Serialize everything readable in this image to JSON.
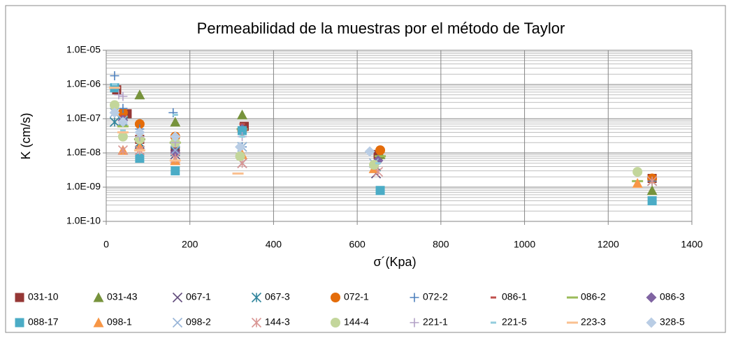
{
  "chart_data": {
    "type": "scatter",
    "title": "Permeabilidad de la muestras por el método de Taylor",
    "x_label": "σ´(Kpa)",
    "y_label": "K (cm/s)",
    "xlim": [
      0,
      1400
    ],
    "xticks": [
      0,
      200,
      400,
      600,
      800,
      1000,
      1200,
      1400
    ],
    "ylim": [
      1e-10,
      1e-05
    ],
    "log_y": true,
    "grid": true,
    "minor_grid": true,
    "legend": "bottom",
    "yticks": [
      {
        "value": 1e-10,
        "label": "1.0E-10"
      },
      {
        "value": 1e-09,
        "label": "1.0E-09"
      },
      {
        "value": 1e-08,
        "label": "1.0E-08"
      },
      {
        "value": 1e-07,
        "label": "1.0E-07"
      },
      {
        "value": 1e-06,
        "label": "1.0E-06"
      },
      {
        "value": 1e-05,
        "label": "1.0E-05"
      }
    ],
    "series": [
      {
        "name": "031-10",
        "color": "#953735",
        "marker": "square",
        "x": [
          25,
          50,
          80,
          165,
          330,
          650,
          1305
        ],
        "values": [
          7e-07,
          1.4e-07,
          2.5e-08,
          1.2e-08,
          6e-08,
          9e-09,
          1.8e-09
        ]
      },
      {
        "name": "031-43",
        "color": "#77933c",
        "marker": "triangle",
        "x": [
          40,
          80,
          165,
          325,
          655,
          1305
        ],
        "values": [
          1.5e-07,
          5e-07,
          8e-08,
          1.3e-07,
          9e-09,
          8e-10
        ]
      },
      {
        "name": "067-1",
        "color": "#604a7b",
        "marker": "x",
        "x": [
          40,
          80,
          165,
          325,
          645,
          1305
        ],
        "values": [
          1.2e-07,
          1.8e-08,
          9e-09,
          5e-09,
          2.5e-09,
          1.5e-09
        ]
      },
      {
        "name": "067-3",
        "color": "#31859c",
        "marker": "star",
        "x": [
          20,
          40,
          80,
          165,
          325,
          645,
          1305
        ],
        "values": [
          8e-08,
          8e-08,
          2e-08,
          1.1e-08,
          1.5e-08,
          4e-09,
          1.5e-09
        ]
      },
      {
        "name": "072-1",
        "color": "#e46c0a",
        "marker": "circle",
        "x": [
          40,
          80,
          165,
          325,
          655,
          1305
        ],
        "values": [
          1.5e-07,
          7e-08,
          3e-08,
          4.5e-08,
          1.2e-08,
          1.8e-09
        ]
      },
      {
        "name": "072-2",
        "color": "#4f81bd",
        "marker": "plus",
        "x": [
          20,
          40,
          80,
          160,
          325,
          650,
          1305
        ],
        "values": [
          1.8e-06,
          2e-07,
          5e-08,
          1.5e-07,
          1.5e-08,
          6e-09,
          1.5e-09
        ]
      },
      {
        "name": "086-1",
        "color": "#c0504d",
        "marker": "dash",
        "x": [
          40,
          80,
          165,
          325,
          655
        ],
        "values": [
          1.2e-07,
          2e-08,
          1.5e-08,
          7e-08,
          8e-09
        ]
      },
      {
        "name": "086-2",
        "color": "#9bbb59",
        "marker": "longdash",
        "x": [
          40,
          80,
          165,
          325,
          655,
          1270
        ],
        "values": [
          6e-08,
          2.5e-08,
          2e-08,
          5e-08,
          8e-09,
          1.5e-09
        ]
      },
      {
        "name": "086-3",
        "color": "#8064a2",
        "marker": "diamond",
        "x": [
          40,
          80,
          165,
          325,
          650
        ],
        "values": [
          9e-08,
          2.5e-08,
          1e-08,
          5e-08,
          6e-09
        ]
      },
      {
        "name": "088-17",
        "color": "#4bacc6",
        "marker": "square",
        "x": [
          20,
          80,
          165,
          325,
          655,
          1305
        ],
        "values": [
          8e-07,
          7e-09,
          3e-09,
          4.5e-08,
          8e-10,
          4e-10
        ]
      },
      {
        "name": "098-1",
        "color": "#f79646",
        "marker": "triangle",
        "x": [
          40,
          80,
          165,
          325,
          640,
          1270
        ],
        "values": [
          1.2e-08,
          1.5e-08,
          6e-09,
          9e-09,
          3.5e-09,
          1.3e-09
        ]
      },
      {
        "name": "098-2",
        "color": "#95b3d7",
        "marker": "x",
        "x": [
          20,
          40,
          80,
          165,
          325,
          640
        ],
        "values": [
          1.5e-07,
          9e-08,
          3e-08,
          1.2e-08,
          1.5e-08,
          5e-09
        ]
      },
      {
        "name": "144-3",
        "color": "#d99694",
        "marker": "star",
        "x": [
          40,
          80,
          165,
          325,
          650,
          1305
        ],
        "values": [
          1.2e-08,
          1.2e-08,
          7e-09,
          5e-09,
          2.8e-09,
          1.5e-09
        ]
      },
      {
        "name": "144-4",
        "color": "#c3d69b",
        "marker": "circle",
        "x": [
          20,
          40,
          80,
          165,
          320,
          640,
          1270
        ],
        "values": [
          2.5e-07,
          3e-08,
          2.5e-08,
          2e-08,
          8e-09,
          4.5e-09,
          2.8e-09
        ]
      },
      {
        "name": "221-1",
        "color": "#b3a2c7",
        "marker": "plus",
        "x": [
          30,
          40,
          80,
          165,
          325
        ],
        "values": [
          5e-07,
          4.5e-07,
          3e-08,
          2e-08,
          3e-08
        ]
      },
      {
        "name": "221-5",
        "color": "#93cddd",
        "marker": "dash",
        "x": [
          20,
          40,
          165,
          325,
          650
        ],
        "values": [
          1e-06,
          4.5e-08,
          1.3e-07,
          3e-08,
          5e-09
        ]
      },
      {
        "name": "223-3",
        "color": "#fac090",
        "marker": "longdash",
        "x": [
          20,
          40,
          80,
          165,
          315
        ],
        "values": [
          8e-07,
          4e-08,
          1.2e-08,
          6e-09,
          2.5e-09
        ]
      },
      {
        "name": "328-5",
        "color": "#b9cde5",
        "marker": "diamond",
        "x": [
          20,
          40,
          80,
          165,
          320,
          630
        ],
        "values": [
          1.5e-07,
          8e-08,
          4e-08,
          3e-08,
          1.5e-08,
          1.1e-08
        ]
      }
    ]
  }
}
